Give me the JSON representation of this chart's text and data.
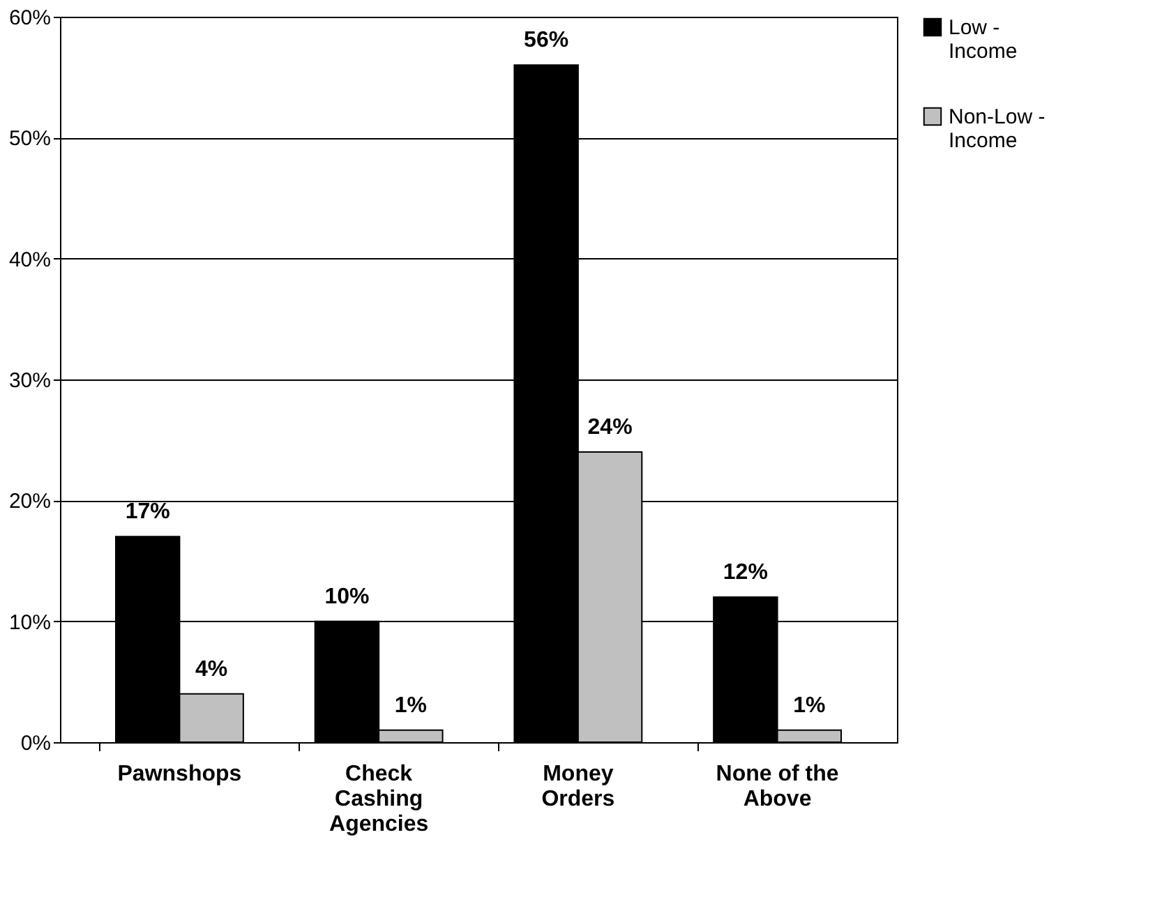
{
  "chart_data": {
    "type": "bar",
    "categories": [
      "Pawnshops",
      "Check Cashing Agencies",
      "Money Orders",
      "None of the Above"
    ],
    "series": [
      {
        "name": "Low - Income",
        "color": "#000000",
        "values": [
          17,
          10,
          56,
          12
        ],
        "value_labels": [
          "17%",
          "10%",
          "56%",
          "12%"
        ]
      },
      {
        "name": "Non-Low - Income",
        "color": "#c0c0c0",
        "values": [
          4,
          1,
          24,
          1
        ],
        "value_labels": [
          "4%",
          "1%",
          "24%",
          "1%"
        ]
      }
    ],
    "ylim": [
      0,
      60
    ],
    "yticks": [
      {
        "value": 0,
        "label": "0%"
      },
      {
        "value": 10,
        "label": "10%"
      },
      {
        "value": 20,
        "label": "20%"
      },
      {
        "value": 30,
        "label": "30%"
      },
      {
        "value": 40,
        "label": "40%"
      },
      {
        "value": 50,
        "label": "50%"
      },
      {
        "value": 60,
        "label": "60%"
      }
    ],
    "grid": "y",
    "legend": "right"
  }
}
